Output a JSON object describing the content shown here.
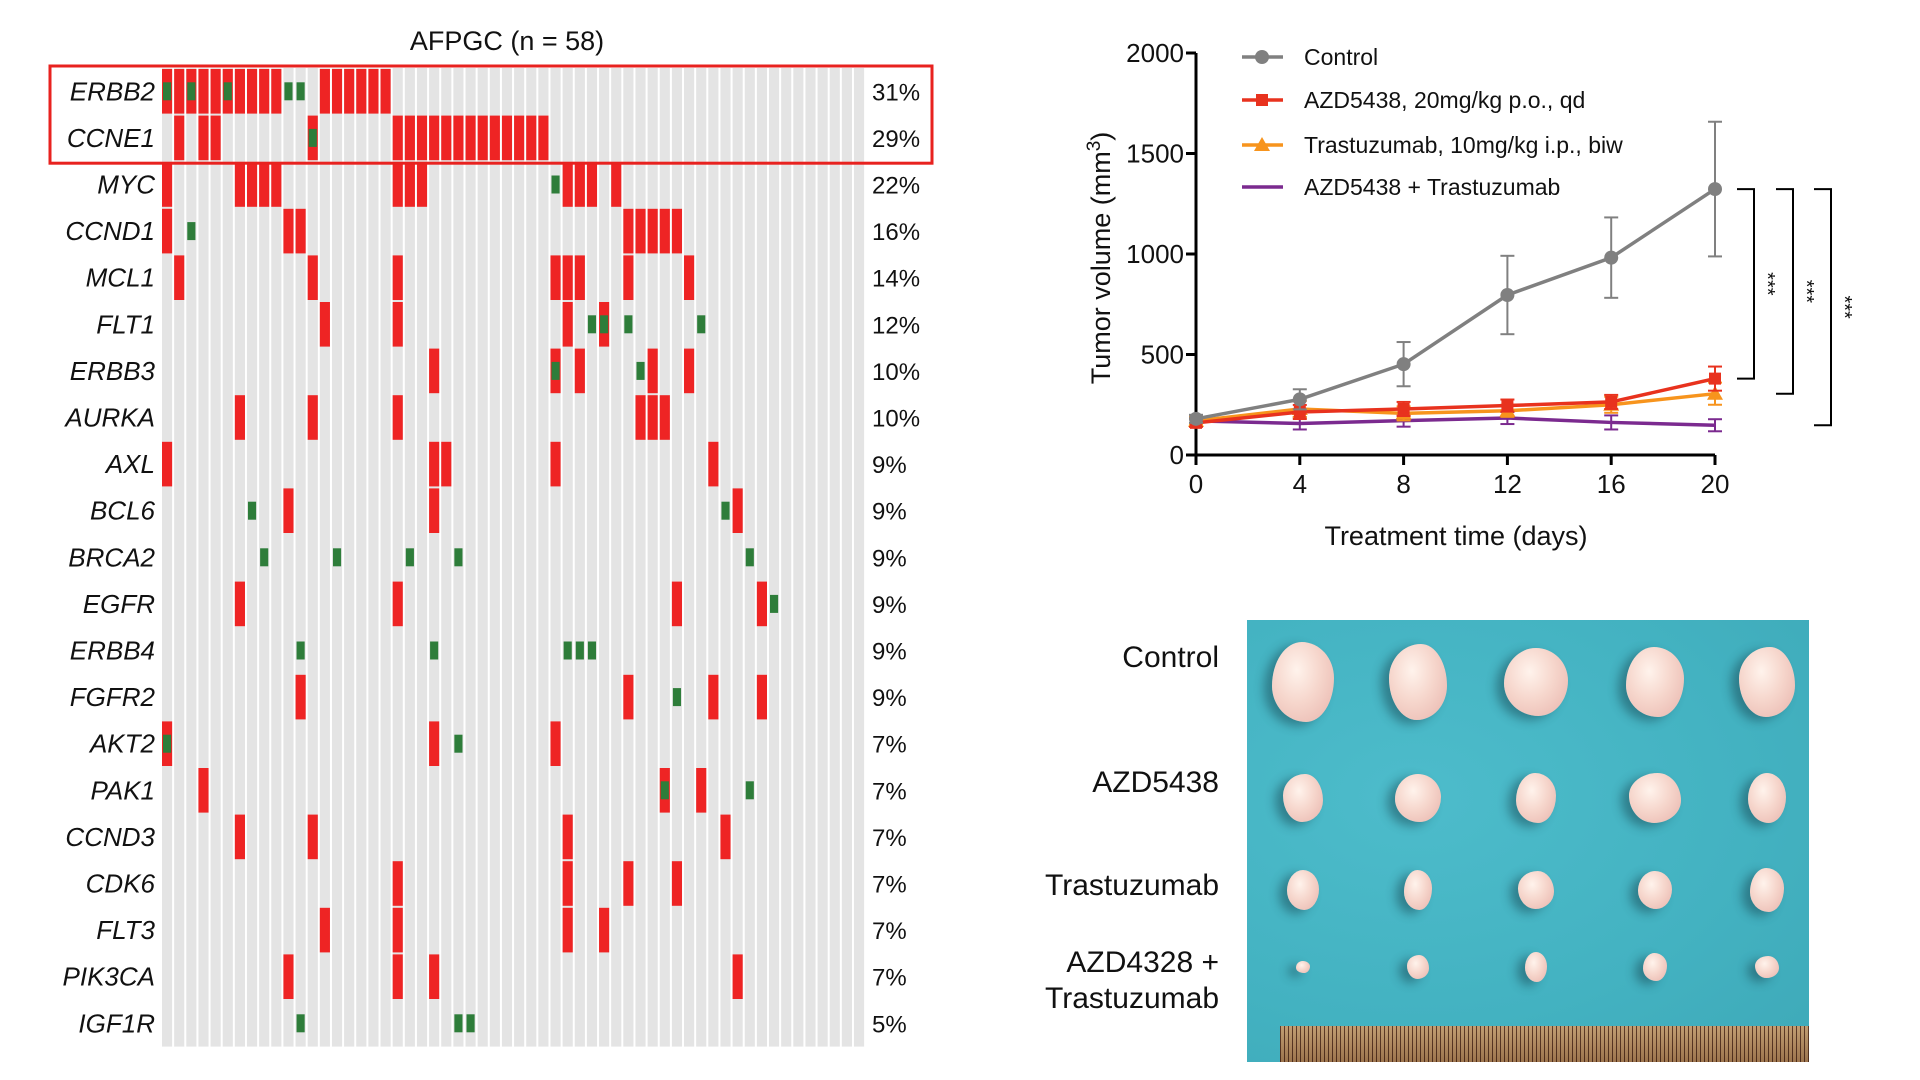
{
  "colors": {
    "amplification": "#ee2424",
    "mutation": "#2e7d3a",
    "unaltered": "#e4e4e4",
    "highlight_box": "#e8221f"
  },
  "chart_data": [
    {
      "type": "heatmap",
      "subtype": "oncoprint",
      "title": "AFPGC (n = 58)",
      "n_samples": 58,
      "highlighted_genes": [
        "ERBB2",
        "CCNE1"
      ],
      "genes": [
        {
          "name": "ERBB2",
          "pct": "31%",
          "amp": [
            1,
            2,
            3,
            4,
            5,
            6,
            7,
            8,
            9,
            10,
            14,
            15,
            16,
            17,
            18,
            19
          ],
          "mut": [
            1,
            3,
            6,
            11,
            12
          ]
        },
        {
          "name": "CCNE1",
          "pct": "29%",
          "amp": [
            2,
            4,
            5,
            13,
            20,
            21,
            22,
            23,
            24,
            25,
            26,
            27,
            28,
            29,
            30,
            31,
            32
          ],
          "mut": [
            13
          ]
        },
        {
          "name": "MYC",
          "pct": "22%",
          "amp": [
            1,
            7,
            8,
            9,
            10,
            20,
            21,
            22,
            34,
            35,
            36,
            38
          ],
          "mut": [
            33
          ]
        },
        {
          "name": "CCND1",
          "pct": "16%",
          "amp": [
            1,
            11,
            12,
            39,
            40,
            41,
            42,
            43
          ],
          "mut": [
            3
          ]
        },
        {
          "name": "MCL1",
          "pct": "14%",
          "amp": [
            2,
            13,
            20,
            33,
            34,
            35,
            39,
            44
          ],
          "mut": []
        },
        {
          "name": "FLT1",
          "pct": "12%",
          "amp": [
            14,
            20,
            34,
            37
          ],
          "mut": [
            36,
            37,
            39,
            45
          ]
        },
        {
          "name": "ERBB3",
          "pct": "10%",
          "amp": [
            23,
            33,
            35,
            41,
            44
          ],
          "mut": [
            33,
            40
          ]
        },
        {
          "name": "AURKA",
          "pct": "10%",
          "amp": [
            7,
            13,
            20,
            40,
            41,
            42
          ],
          "mut": []
        },
        {
          "name": "AXL",
          "pct": "9%",
          "amp": [
            1,
            23,
            24,
            33,
            46
          ],
          "mut": []
        },
        {
          "name": "BCL6",
          "pct": "9%",
          "amp": [
            11,
            23,
            48
          ],
          "mut": [
            8,
            47
          ]
        },
        {
          "name": "BRCA2",
          "pct": "9%",
          "amp": [],
          "mut": [
            9,
            15,
            21,
            25,
            49
          ]
        },
        {
          "name": "EGFR",
          "pct": "9%",
          "amp": [
            7,
            20,
            43,
            50
          ],
          "mut": [
            51
          ]
        },
        {
          "name": "ERBB4",
          "pct": "9%",
          "amp": [],
          "mut": [
            12,
            23,
            34,
            35,
            36
          ]
        },
        {
          "name": "FGFR2",
          "pct": "9%",
          "amp": [
            12,
            39,
            46,
            50
          ],
          "mut": [
            43
          ]
        },
        {
          "name": "AKT2",
          "pct": "7%",
          "amp": [
            1,
            23,
            33
          ],
          "mut": [
            1,
            25
          ]
        },
        {
          "name": "PAK1",
          "pct": "7%",
          "amp": [
            4,
            42,
            45
          ],
          "mut": [
            42,
            49
          ]
        },
        {
          "name": "CCND3",
          "pct": "7%",
          "amp": [
            7,
            13,
            34,
            47
          ],
          "mut": []
        },
        {
          "name": "CDK6",
          "pct": "7%",
          "amp": [
            20,
            34,
            39,
            43
          ],
          "mut": []
        },
        {
          "name": "FLT3",
          "pct": "7%",
          "amp": [
            14,
            20,
            34,
            37
          ],
          "mut": []
        },
        {
          "name": "PIK3CA",
          "pct": "7%",
          "amp": [
            11,
            20,
            23,
            48
          ],
          "mut": []
        },
        {
          "name": "IGF1R",
          "pct": "5%",
          "amp": [],
          "mut": [
            12,
            25,
            26
          ]
        }
      ]
    },
    {
      "type": "line",
      "xlabel": "Treatment time (days)",
      "ylabel": "Tumor volume (mm",
      "ylabel_sup": "3",
      "ylabel_end": ")",
      "xlim": [
        0,
        20
      ],
      "ylim": [
        0,
        2000
      ],
      "xticks": [
        0,
        4,
        8,
        12,
        16,
        20
      ],
      "yticks": [
        0,
        500,
        1000,
        1500,
        2000
      ],
      "legend_position": "top-left",
      "x": [
        0,
        4,
        8,
        12,
        16,
        20
      ],
      "series": [
        {
          "name": "Control",
          "color": "#808080",
          "marker": "circle",
          "values": [
            180,
            277,
            452,
            796,
            982,
            1323
          ],
          "errors": [
            20,
            50,
            110,
            195,
            200,
            335
          ]
        },
        {
          "name": "AZD5438, 20mg/kg p.o., qd",
          "color": "#e8321e",
          "marker": "square",
          "values": [
            160,
            214,
            229,
            246,
            264,
            380
          ],
          "errors": [
            20,
            35,
            35,
            30,
            35,
            60
          ]
        },
        {
          "name": "Trastuzumab, 10mg/kg i.p., biw",
          "color": "#f7941d",
          "marker": "triangle",
          "values": [
            170,
            229,
            207,
            220,
            250,
            305
          ],
          "errors": [
            20,
            40,
            35,
            30,
            40,
            55
          ]
        },
        {
          "name": "AZD5438 + Trastuzumab",
          "color": "#7b2a8f",
          "marker": "none",
          "values": [
            170,
            157,
            171,
            184,
            162,
            148
          ],
          "errors": [
            20,
            30,
            30,
            30,
            35,
            30
          ]
        }
      ],
      "significance": [
        {
          "from": "Control",
          "to": "AZD5438, 20mg/kg p.o., qd",
          "label": "***"
        },
        {
          "from": "Control",
          "to": "Trastuzumab, 10mg/kg i.p., biw",
          "label": "***"
        },
        {
          "from": "Control",
          "to": "AZD5438 + Trastuzumab",
          "label": "***"
        }
      ]
    }
  ],
  "photo": {
    "background_color": "#45b5c4",
    "row_labels": [
      "Control",
      "AZD5438",
      "Trastuzumab",
      "AZD4328 +",
      "Trastuzumab"
    ]
  }
}
